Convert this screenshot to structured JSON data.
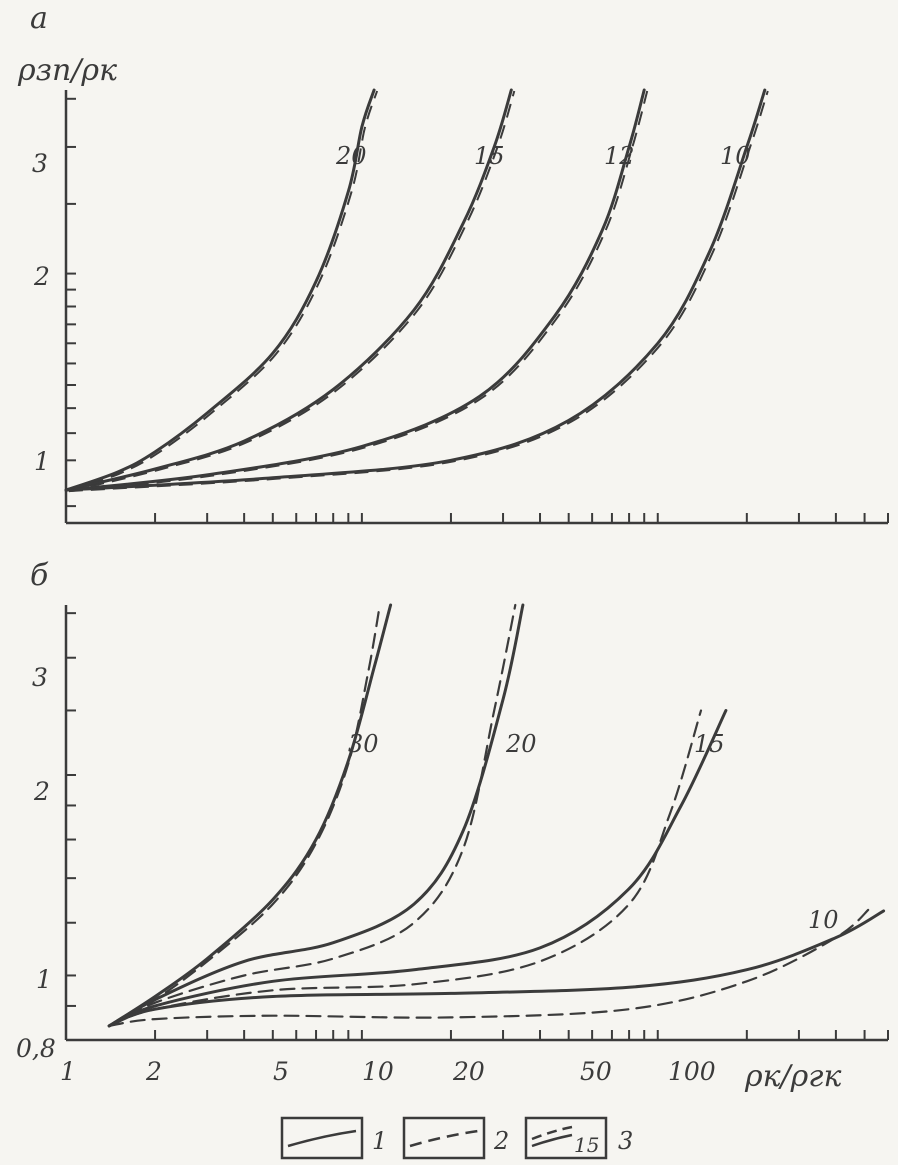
{
  "colors": {
    "ink": "#3b3b3b",
    "paper": "#f6f5f1"
  },
  "chart_data": [
    {
      "panel": "a",
      "type": "line",
      "xscale": "log",
      "yscale": "log",
      "xlim": [
        1,
        600
      ],
      "ylim": [
        0.9,
        3.6
      ],
      "ylabel": "ρзп/ρк",
      "yticks": [
        1,
        2,
        3
      ],
      "series": [
        {
          "name": "20",
          "style": "solid",
          "x": [
            1,
            1.5,
            2,
            3,
            5,
            7,
            9,
            10,
            11
          ],
          "y": [
            1.0,
            1.06,
            1.13,
            1.28,
            1.55,
            1.95,
            2.6,
            3.2,
            3.6
          ]
        },
        {
          "name": "15",
          "style": "solid",
          "x": [
            1,
            2,
            4,
            8,
            15,
            22,
            28,
            32
          ],
          "y": [
            1.0,
            1.07,
            1.17,
            1.38,
            1.78,
            2.35,
            3.0,
            3.6
          ]
        },
        {
          "name": "12",
          "style": "solid",
          "x": [
            1,
            3,
            10,
            25,
            45,
            65,
            80,
            90
          ],
          "y": [
            1.0,
            1.05,
            1.15,
            1.35,
            1.75,
            2.3,
            3.0,
            3.6
          ]
        },
        {
          "name": "10",
          "style": "solid",
          "x": [
            1,
            5,
            20,
            50,
            100,
            150,
            200,
            230
          ],
          "y": [
            1.0,
            1.04,
            1.1,
            1.25,
            1.6,
            2.15,
            3.0,
            3.6
          ]
        }
      ]
    },
    {
      "panel": "б",
      "type": "line",
      "xscale": "log",
      "yscale": "log",
      "xlim": [
        1,
        600
      ],
      "ylim": [
        0.8,
        3.6
      ],
      "xlabel": "ρк/ρгк",
      "xticks": [
        1,
        2,
        5,
        10,
        20,
        50,
        100
      ],
      "xticklabels": [
        "1",
        "2",
        "5",
        "10",
        "20",
        "50",
        "100"
      ],
      "yticks": [
        0.8,
        1,
        2,
        3
      ],
      "yticklabels": [
        "0,8",
        "1",
        "2",
        "3"
      ],
      "series": [
        {
          "name": "30",
          "style": "solid",
          "x": [
            1.4,
            2,
            3,
            5,
            7,
            9,
            11,
            12.5
          ],
          "y": [
            0.84,
            0.93,
            1.06,
            1.3,
            1.6,
            2.1,
            2.9,
            3.6
          ]
        },
        {
          "name": "30",
          "style": "dashed",
          "x": [
            1.4,
            2,
            3,
            5,
            7,
            9,
            10.5,
            11.5
          ],
          "y": [
            0.84,
            0.92,
            1.05,
            1.28,
            1.58,
            2.08,
            2.85,
            3.6
          ]
        },
        {
          "name": "20",
          "style": "solid",
          "x": [
            1.4,
            2,
            4,
            8,
            15,
            22,
            30,
            35
          ],
          "y": [
            0.84,
            0.92,
            1.05,
            1.12,
            1.28,
            1.65,
            2.6,
            3.6
          ]
        },
        {
          "name": "20",
          "style": "dashed",
          "x": [
            1.4,
            2,
            4,
            8,
            15,
            22,
            28,
            33
          ],
          "y": [
            0.84,
            0.91,
            1.0,
            1.06,
            1.2,
            1.55,
            2.5,
            3.6
          ]
        },
        {
          "name": "15",
          "style": "solid",
          "x": [
            1.4,
            2,
            5,
            15,
            40,
            80,
            120,
            170
          ],
          "y": [
            0.84,
            0.9,
            0.98,
            1.02,
            1.1,
            1.35,
            1.8,
            2.5
          ]
        },
        {
          "name": "15",
          "style": "dashed",
          "x": [
            1.4,
            2,
            5,
            15,
            40,
            80,
            110,
            140
          ],
          "y": [
            0.84,
            0.89,
            0.95,
            0.97,
            1.05,
            1.28,
            1.75,
            2.5
          ]
        },
        {
          "name": "10",
          "style": "solid",
          "x": [
            1.4,
            2,
            5,
            20,
            80,
            200,
            400,
            580
          ],
          "y": [
            0.84,
            0.89,
            0.93,
            0.94,
            0.96,
            1.02,
            1.14,
            1.25
          ]
        },
        {
          "name": "10",
          "style": "dashed",
          "x": [
            1.4,
            2,
            5,
            20,
            80,
            200,
            400,
            520
          ],
          "y": [
            0.84,
            0.86,
            0.87,
            0.865,
            0.89,
            0.98,
            1.14,
            1.26
          ]
        }
      ]
    }
  ],
  "panel_a": {
    "letter": "а",
    "ylabel": "ρзп/ρк",
    "yticklabels": [
      "1",
      "2",
      "3"
    ],
    "curve_labels": [
      "20",
      "15",
      "12",
      "10"
    ]
  },
  "panel_b": {
    "letter": "б",
    "yticklabels": [
      "0,8",
      "1",
      "2",
      "3"
    ],
    "xticklabels": [
      "1",
      "2",
      "5",
      "10",
      "20",
      "50",
      "100"
    ],
    "xlabel": "ρк/ρгк",
    "curve_labels": [
      "30",
      "20",
      "15",
      "10"
    ]
  },
  "legend": {
    "items": [
      {
        "number": "1",
        "style": "solid"
      },
      {
        "number": "2",
        "style": "dashed"
      },
      {
        "number": "3",
        "style": "both",
        "inner_label": "15"
      }
    ]
  }
}
